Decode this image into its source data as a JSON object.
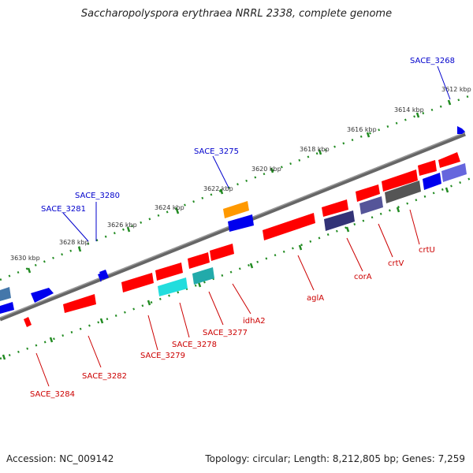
{
  "title": "Saccharopolyspora erythraea NRRL 2338, complete genome",
  "accession": "Accession: NC_009142",
  "topology": "Topology: circular; Length: 8,212,805 bp; Genes: 7,259",
  "colors": {
    "backbone": "#777777",
    "tick": "#228B22",
    "label_blue": "#0000CC",
    "label_red": "#CC0000",
    "gene_red": "#FF0000",
    "gene_blue": "#0000EE",
    "gene_cyan": "#22DDDD",
    "gene_orange": "#FF9900",
    "gene_navy": "#444488",
    "gene_gray": "#666666"
  },
  "kbp_labels": [
    "3612 kbp",
    "3614 kbp",
    "3616 kbp",
    "3618 kbp",
    "3620 kbp",
    "3622 kbp",
    "3624 kbp",
    "3626 kbp",
    "3628 kbp",
    "3630 kbp"
  ],
  "gene_labels": {
    "sace3268": "SACE_3268",
    "sace3275": "SACE_3275",
    "sace3280": "SACE_3280",
    "sace3281": "SACE_3281",
    "crtU": "crtU",
    "crtV": "crtV",
    "corA": "corA",
    "aglA": "aglA",
    "idhA2": "idhA2",
    "sace3277": "SACE_3277",
    "sace3278": "SACE_3278",
    "sace3279": "SACE_3279",
    "sace3282": "SACE_3282",
    "sace3284": "SACE_3284"
  }
}
